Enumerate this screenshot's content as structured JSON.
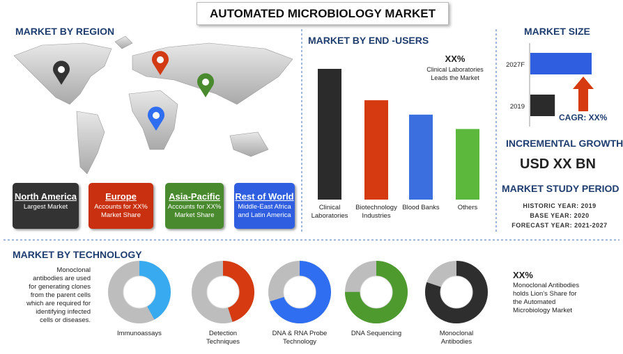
{
  "title": "AUTOMATED MICROBIOLOGY MARKET",
  "region": {
    "heading": "MARKET BY REGION",
    "cards": [
      {
        "name": "North America",
        "text": "Largest Market",
        "color": "#333333"
      },
      {
        "name": "Europe",
        "text": "Accounts for XX% Market Share",
        "color": "#c9300f"
      },
      {
        "name": "Asia-Pacific",
        "text": "Accounts for XX% Market Share",
        "color": "#4a8a2e"
      },
      {
        "name": "Rest of World",
        "text": "Middle-East Africa and Latin America",
        "color": "#2f5fe0"
      }
    ]
  },
  "end_users": {
    "heading": "MARKET BY END -USERS",
    "callout_value": "XX%",
    "callout_text": "Clinical Laboratories Leads the Market",
    "chart": {
      "type": "bar",
      "categories": [
        "Clinical Laboratories",
        "Biotechnology Industries",
        "Blood Banks",
        "Others"
      ],
      "values": [
        100,
        76,
        65,
        54
      ],
      "colors": [
        "#2b2b2b",
        "#d63a10",
        "#3b6fe0",
        "#5cb83c"
      ]
    }
  },
  "market_size": {
    "heading": "MARKET SIZE",
    "chart": {
      "type": "bar",
      "categories": [
        "2027F",
        "2019"
      ],
      "values": [
        100,
        40
      ],
      "colors": [
        "#2f5fe0",
        "#2b2b2b"
      ]
    },
    "cagr": "CAGR: XX%"
  },
  "incremental_growth": {
    "heading": "INCREMENTAL GROWTH",
    "value": "USD XX BN"
  },
  "study_period": {
    "heading": "MARKET STUDY PERIOD",
    "lines": [
      "HISTORIC YEAR: 2019",
      "BASE YEAR: 2020",
      "FORECAST YEAR: 2021-2027"
    ]
  },
  "technology": {
    "heading": "MARKET BY TECHNOLOGY",
    "note": "Monoclonal antibodies are used for generating clones from the parent cells which are required for identifying infected cells or diseases.",
    "callout_value": "XX%",
    "callout_text": "Monoclonal Antibodies holds Lion's Share for the Automated Microbiology Market",
    "chart": {
      "type": "donut",
      "categories": [
        "Immunoassays",
        "Detection Techniques",
        "DNA & RNA Probe Technology",
        "DNA Sequencing",
        "Monoclonal Antibodies"
      ],
      "values": [
        42,
        45,
        70,
        75,
        80
      ],
      "colors": [
        "#38aaf0",
        "#d63a10",
        "#2f6ef0",
        "#4e9a2e",
        "#2e2e2e"
      ]
    }
  }
}
